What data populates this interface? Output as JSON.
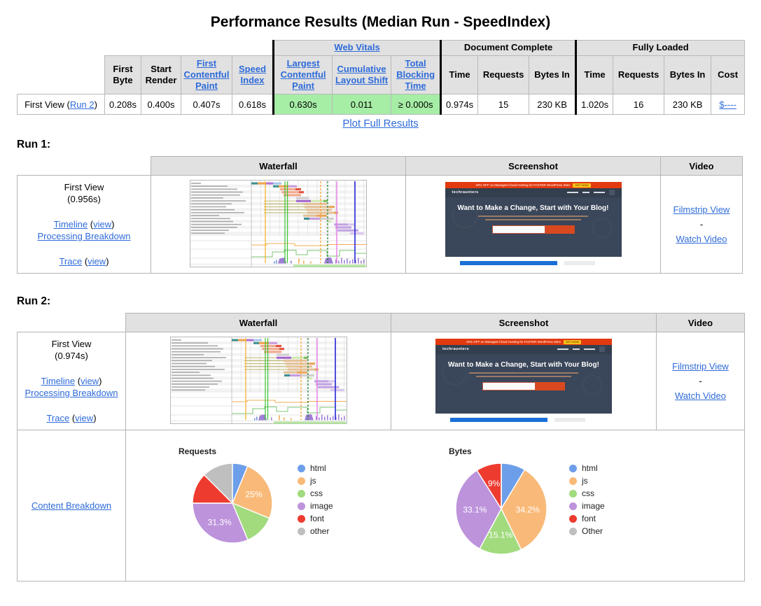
{
  "page": {
    "title": "Performance Results (Median Run - SpeedIndex)",
    "plot_link": "Plot Full Results"
  },
  "results_table": {
    "group_headers": {
      "web_vitals": "Web Vitals",
      "document_complete": "Document Complete",
      "fully_loaded": "Fully Loaded"
    },
    "column_headers": {
      "first_byte": "First Byte",
      "start_render": "Start Render",
      "first_contentful_paint": "First Contentful Paint",
      "speed_index": "Speed Index",
      "largest_contentful_paint": "Largest Contentful Paint",
      "cumulative_layout_shift": "Cumulative Layout Shift",
      "total_blocking_time": "Total Blocking Time",
      "dc_time": "Time",
      "dc_requests": "Requests",
      "dc_bytes": "Bytes In",
      "fl_time": "Time",
      "fl_requests": "Requests",
      "fl_bytes": "Bytes In",
      "cost": "Cost"
    },
    "first_view_row": {
      "label_prefix": "First View (",
      "run_link": "Run 2",
      "label_suffix": ")",
      "first_byte": "0.208s",
      "start_render": "0.400s",
      "first_contentful_paint": "0.407s",
      "speed_index": "0.618s",
      "largest_contentful_paint": "0.630s",
      "cumulative_layout_shift": "0.011",
      "total_blocking_time": "≥ 0.000s",
      "dc_time": "0.974s",
      "dc_requests": "15",
      "dc_bytes": "230 KB",
      "fl_time": "1.020s",
      "fl_requests": "16",
      "fl_bytes": "230 KB",
      "cost": "$----"
    }
  },
  "run_table_headers": {
    "waterfall": "Waterfall",
    "screenshot": "Screenshot",
    "video": "Video"
  },
  "runs": [
    {
      "heading": "Run 1:",
      "first_view_label": "First View",
      "first_view_time": "(0.956s)",
      "timeline_link": "Timeline",
      "processing_link": "Processing Breakdown",
      "trace_link": "Trace",
      "view_label": "view",
      "open_paren": "(",
      "close_paren": ")",
      "filmstrip_link": "Filmstrip View",
      "separator": "-",
      "watch_video_link": "Watch Video"
    },
    {
      "heading": "Run 2:",
      "first_view_label": "First View",
      "first_view_time": "(0.974s)",
      "timeline_link": "Timeline",
      "processing_link": "Processing Breakdown",
      "trace_link": "Trace",
      "view_label": "view",
      "open_paren": "(",
      "close_paren": ")",
      "filmstrip_link": "Filmstrip View",
      "separator": "-",
      "watch_video_link": "Watch Video"
    }
  ],
  "content_breakdown": {
    "link": "Content Breakdown"
  },
  "site_thumbnail": {
    "banner_text": "20% OFF on Managed Cloud Hosting for FASTER WordPress Sites",
    "banner_button": "GET NOW",
    "logo": "techraunters",
    "headline": "Want to Make a Change, Start with Your Blog!"
  },
  "chart_data": [
    {
      "id": "requests",
      "type": "pie",
      "title": "Requests",
      "labels": [
        "html",
        "js",
        "css",
        "image",
        "font",
        "other"
      ],
      "values": [
        6.2,
        25,
        12.5,
        31.3,
        12.5,
        12.5
      ],
      "slice_labels": [
        "",
        "25%",
        "",
        "31.3%",
        "",
        ""
      ],
      "colors": [
        "#6D9EEA",
        "#F9BA79",
        "#A1DB7E",
        "#BD93DC",
        "#EE3B30",
        "#BFBFBF"
      ],
      "legend_position": "right"
    },
    {
      "id": "bytes",
      "type": "pie",
      "title": "Bytes",
      "labels": [
        "html",
        "js",
        "css",
        "image",
        "font",
        "Other"
      ],
      "values": [
        8.6,
        34.2,
        15.1,
        33.1,
        9,
        0.01
      ],
      "slice_labels": [
        "",
        "34.2%",
        "15.1%",
        "33.1%",
        "9%",
        ""
      ],
      "colors": [
        "#6D9EEA",
        "#F9BA79",
        "#A1DB7E",
        "#BD93DC",
        "#EE3B30",
        "#BFBFBF"
      ],
      "legend_position": "right"
    }
  ],
  "colors": {
    "link": "#2E6BD9",
    "vitals_good_bg": "#A6EDA6",
    "header_bg": "#E1E1E1",
    "progress_blue": "#1B6FD8"
  }
}
